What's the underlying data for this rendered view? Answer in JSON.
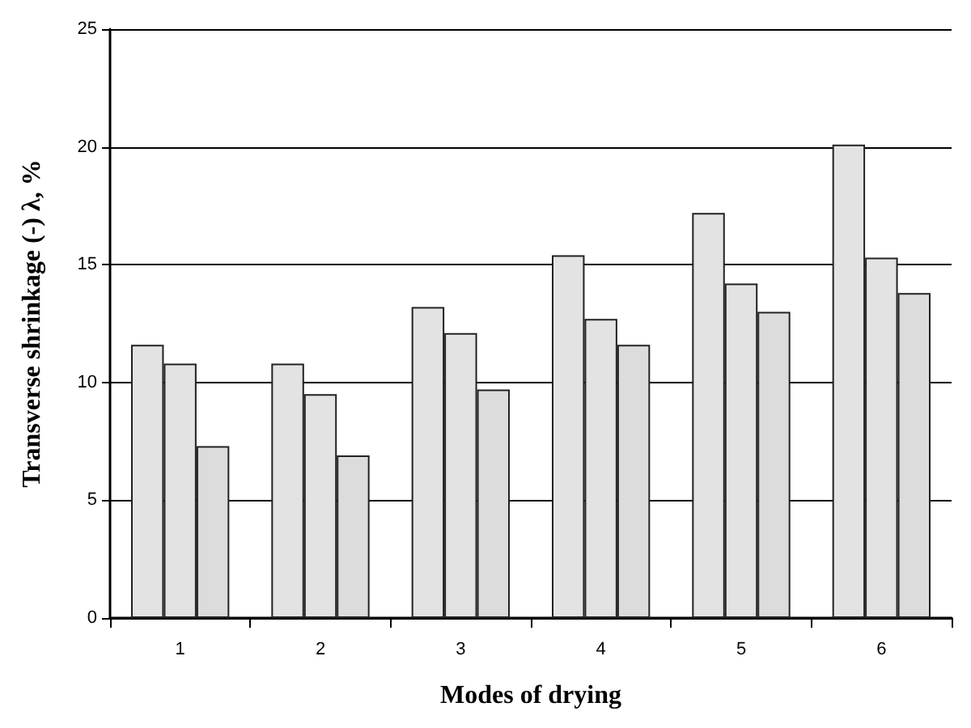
{
  "chart_data": {
    "type": "bar",
    "xlabel": "Modes of drying",
    "ylabel": "Transverse shrinkage (-) λ, %",
    "categories": [
      "1",
      "2",
      "3",
      "4",
      "5",
      "6"
    ],
    "series": [
      {
        "color": "#e3e3e3",
        "values": [
          11.6,
          10.8,
          13.2,
          15.4,
          17.2,
          20.1
        ]
      },
      {
        "color": "#e3e3e3",
        "values": [
          10.8,
          9.5,
          12.1,
          12.7,
          14.2,
          15.3
        ]
      },
      {
        "color": "#dcdcdc",
        "values": [
          7.3,
          6.9,
          9.7,
          11.6,
          13.0,
          13.8
        ]
      }
    ],
    "ylim": [
      0,
      25
    ],
    "yticks": [
      0,
      5,
      10,
      15,
      20,
      25
    ],
    "grid": "y"
  }
}
